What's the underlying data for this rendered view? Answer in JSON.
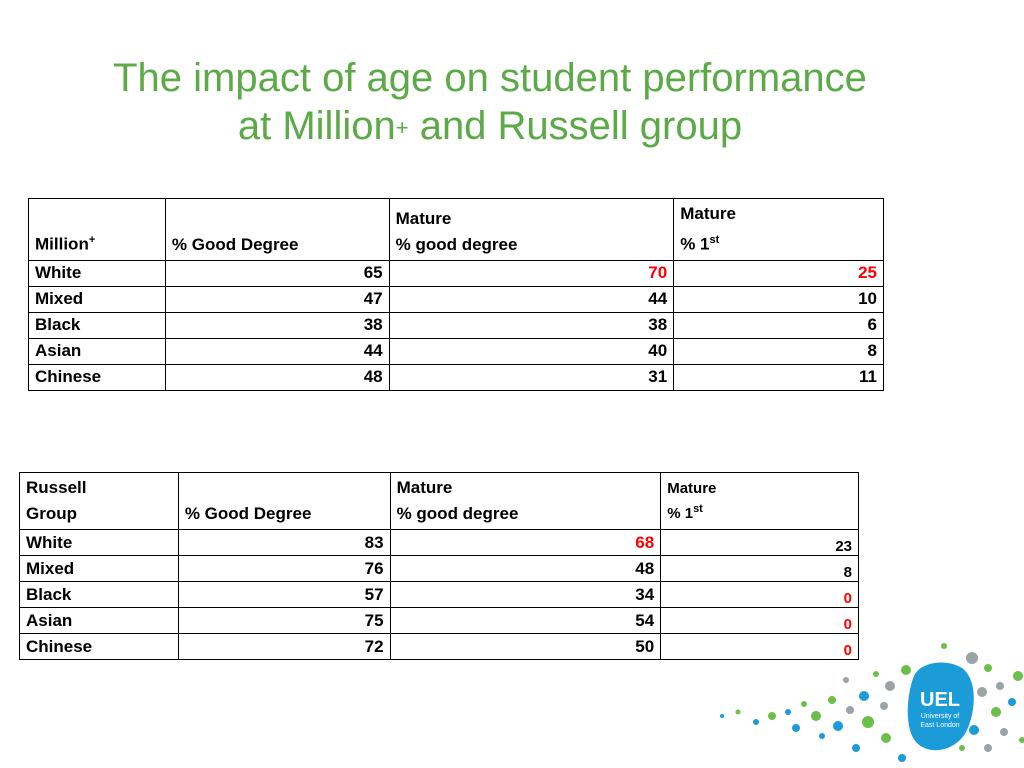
{
  "title": {
    "line1": "The impact of age on student performance",
    "line2_pre": "at Million",
    "line2_sup": "+",
    "line2_post": " and Russell group"
  },
  "million_table": {
    "headers": {
      "group": "Million",
      "group_sup": "+",
      "good_degree": "% Good Degree",
      "mature_good_1": "Mature",
      "mature_good_2": "% good degree",
      "mature_first_1": "Mature",
      "mature_first_2": "% 1",
      "mature_first_sup": "st"
    },
    "rows": [
      {
        "group": "White",
        "good": "65",
        "mature_good": "70",
        "mature_first": "25"
      },
      {
        "group": "Mixed",
        "good": "47",
        "mature_good": "44",
        "mature_first": "10"
      },
      {
        "group": "Black",
        "good": "38",
        "mature_good": "38",
        "mature_first": "6"
      },
      {
        "group": "Asian",
        "good": "44",
        "mature_good": "40",
        "mature_first": "8"
      },
      {
        "group": "Chinese",
        "good": "48",
        "mature_good": "31",
        "mature_first": "11"
      }
    ]
  },
  "russell_table": {
    "headers": {
      "group_1": "Russell",
      "group_2": "Group",
      "good_degree": "% Good Degree",
      "mature_good_1": "Mature",
      "mature_good_2": "% good degree",
      "mature_first_1": "Mature",
      "mature_first_2": "% 1",
      "mature_first_sup": "st"
    },
    "rows": [
      {
        "group": "White",
        "good": "83",
        "mature_good": "68",
        "mature_first": "23"
      },
      {
        "group": "Mixed",
        "good": "76",
        "mature_good": "48",
        "mature_first": "8"
      },
      {
        "group": "Black",
        "good": "57",
        "mature_good": "34",
        "mature_first": "0"
      },
      {
        "group": "Asian",
        "good": "75",
        "mature_good": "54",
        "mature_first": "0"
      },
      {
        "group": "Chinese",
        "good": "72",
        "mature_good": "50",
        "mature_first": "0"
      }
    ]
  },
  "logo": {
    "line1": "UEL",
    "line2": "University of",
    "line3": "East London"
  },
  "colors": {
    "title_green": "#5BAA47",
    "highlight_red": "#FF0000",
    "logo_blue": "#1B9BD7"
  }
}
